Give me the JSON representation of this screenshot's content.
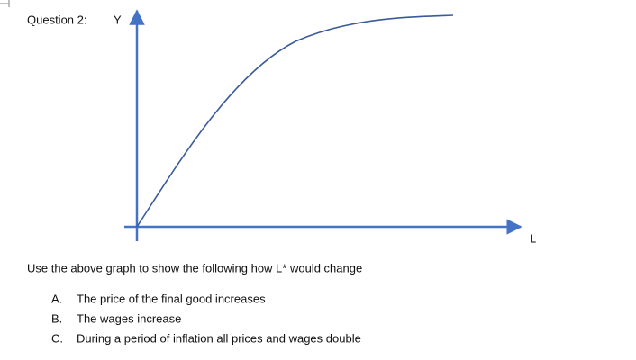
{
  "question": "Question 2:",
  "diagram": {
    "y_axis_label": "Y",
    "x_axis_label": "L"
  },
  "instruction": "Use the above graph to show the following how L* would change",
  "items": [
    {
      "marker": "A.",
      "text": "The price of the final good increases"
    },
    {
      "marker": "B.",
      "text": "The wages increase"
    },
    {
      "marker": "C.",
      "text": "During a period of inflation all prices and wages double"
    }
  ]
}
